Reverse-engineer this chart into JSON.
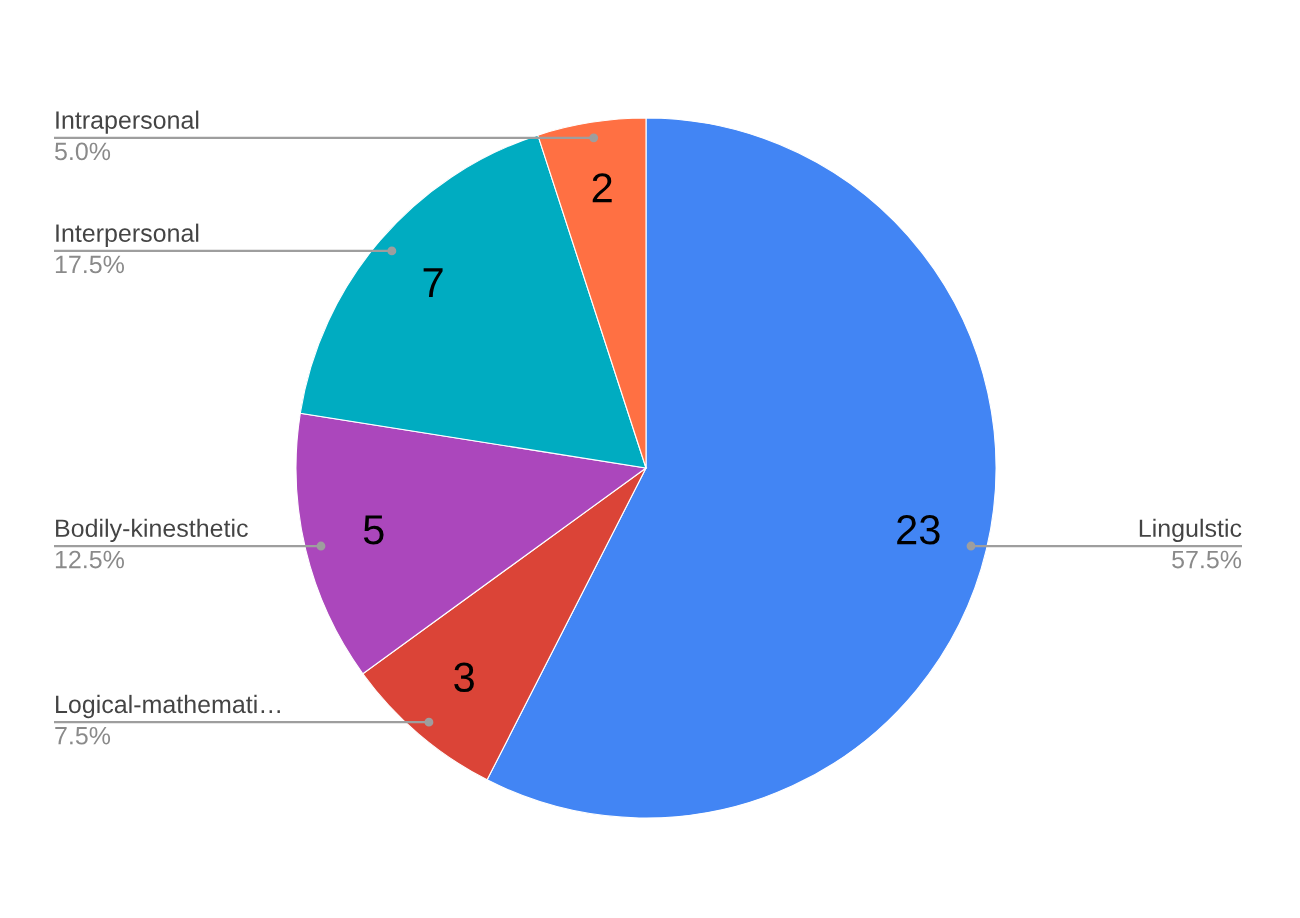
{
  "chart_data": {
    "type": "pie",
    "categories": [
      "Lingulstic",
      "Logical-mathemati…",
      "Bodily-kinesthetic",
      "Interpersonal",
      "Intrapersonal"
    ],
    "values": [
      23,
      3,
      5,
      7,
      2
    ],
    "colors": [
      "#4285f4",
      "#db4437",
      "#ab47bc",
      "#00acc1",
      "#ff7043"
    ],
    "data_labels": true,
    "annotations": [
      "57.5%",
      "7.5%",
      "12.5%",
      "17.5%",
      "5.0%"
    ]
  }
}
